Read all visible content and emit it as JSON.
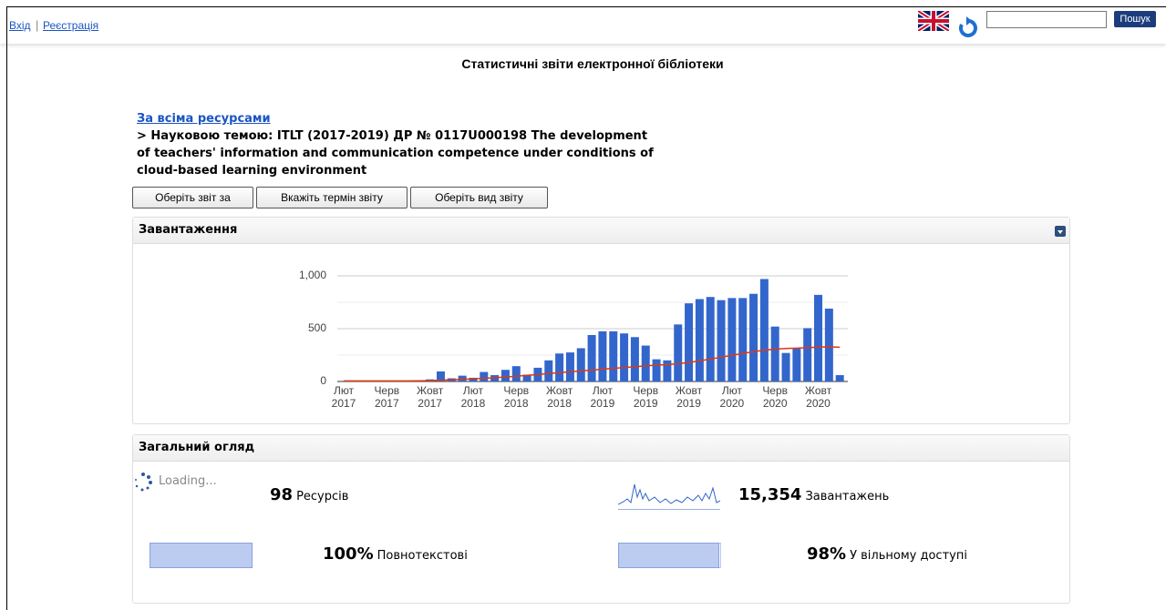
{
  "header": {
    "login": "Вхід",
    "register": "Реєстрація",
    "search_button": "Пошук"
  },
  "title": "Статистичні звіти електронної бібліотеки",
  "breadcrumb": {
    "link": "За всіма ресурсами",
    "text": "> Науковою темою: ITLT (2017-2019) ДР № 0117U000198 The development of teachers' information and communication competence under conditions of cloud-based learning environment"
  },
  "buttons": [
    "Оберіть звіт за",
    "Вкажіть термін звіту",
    "Оберіть вид звіту"
  ],
  "downloads_panel": {
    "title": "Завантаження",
    "chart_data": {
      "type": "bar",
      "categories": [
        "Лют 2017",
        null,
        null,
        null,
        "Черв 2017",
        null,
        null,
        null,
        "Жовт 2017",
        null,
        null,
        null,
        "Лют 2018",
        null,
        null,
        null,
        "Черв 2018",
        null,
        null,
        null,
        "Жовт 2018",
        null,
        null,
        null,
        "Лют 2019",
        null,
        null,
        null,
        "Черв 2019",
        null,
        null,
        null,
        "Жовт 2019",
        null,
        null,
        null,
        "Лют 2020",
        null,
        null,
        null,
        "Черв 2020",
        null,
        null,
        null,
        "Жовт 2020",
        null,
        null
      ],
      "series": [
        {
          "color": "#3366cc",
          "values": [
            0,
            0,
            0,
            0,
            0,
            0,
            0,
            2,
            20,
            95,
            30,
            55,
            35,
            90,
            60,
            110,
            145,
            65,
            130,
            200,
            265,
            275,
            315,
            440,
            475,
            475,
            455,
            420,
            340,
            210,
            200,
            540,
            740,
            780,
            800,
            770,
            790,
            790,
            830,
            970,
            520,
            270,
            310,
            505,
            820,
            690,
            60
          ]
        },
        {
          "type": "line",
          "color": "#dc3912",
          "values": [
            5,
            5,
            5,
            5,
            5,
            5,
            5,
            6,
            8,
            12,
            16,
            20,
            25,
            30,
            36,
            42,
            50,
            58,
            66,
            75,
            84,
            92,
            100,
            108,
            116,
            124,
            132,
            140,
            148,
            155,
            160,
            168,
            180,
            195,
            212,
            230,
            248,
            265,
            282,
            296,
            306,
            312,
            316,
            320,
            325,
            328,
            324
          ]
        }
      ],
      "ylim": [
        0,
        1000
      ],
      "yticks": [
        0,
        500,
        {
          "value": 1000,
          "label": "1,000"
        }
      ],
      "minor_yticks": [
        250,
        750
      ],
      "grid": true
    }
  },
  "overview_panel": {
    "title": "Загальний огляд",
    "loading": "Loading...",
    "items": [
      {
        "value": 98,
        "label": "Ресурсів"
      },
      {
        "value": 15354,
        "value_label": "15,354",
        "label": "Завантажень"
      },
      {
        "value": 100,
        "value_label": "100%",
        "label": "Повнотекстові"
      },
      {
        "value": 98,
        "value_label": "98%",
        "label": "У вільному доступі"
      }
    ]
  }
}
